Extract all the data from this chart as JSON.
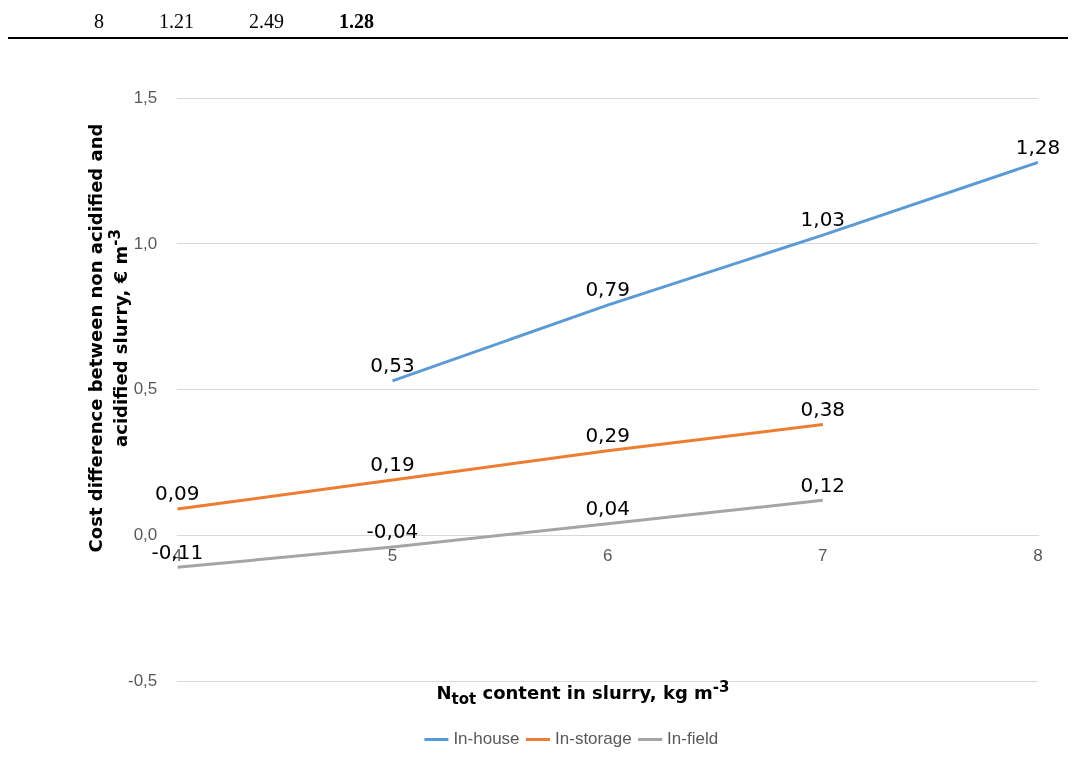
{
  "chart_data": {
    "type": "line",
    "annotations": [
      "8",
      "1.21",
      "2.49",
      "1.28"
    ],
    "xlabel": "N$_{tot}$ content in slurry, kg m$^{-3}$",
    "ylabel": "Cost difference between non acidified and acidified slurry, € m$^{-3}$",
    "xlim": [
      4,
      8
    ],
    "xticks": [
      4,
      5,
      6,
      7,
      8
    ],
    "ylim": [
      -0.5,
      1.5
    ],
    "yticks": [
      {
        "value": -0.5,
        "label": "-0,5"
      },
      {
        "value": 0,
        "label": "0,0"
      },
      {
        "value": 0.5,
        "label": "0,5"
      },
      {
        "value": 1,
        "label": "1,0"
      },
      {
        "value": 1.5,
        "label": "1,5"
      }
    ],
    "series": [
      {
        "name": "In-house",
        "color": "#5b9bd5",
        "x": [
          5,
          6,
          7,
          8
        ],
        "values": [
          0.53,
          0.79,
          1.03,
          1.28
        ],
        "value_labels": [
          "0,53",
          "0,79",
          "1,03",
          "1,28"
        ]
      },
      {
        "name": "In-storage",
        "color": "#ed7d31",
        "x": [
          4,
          5,
          6,
          7
        ],
        "values": [
          0.09,
          0.19,
          0.29,
          0.38
        ],
        "value_labels": [
          "0,09",
          "0,19",
          "0,29",
          "0,38"
        ]
      },
      {
        "name": "In-field",
        "color": "#a5a5a5",
        "x": [
          4,
          5,
          6,
          7
        ],
        "values": [
          -0.11,
          -0.04,
          0.04,
          0.12
        ],
        "value_labels": [
          "-0,11",
          "-0,04",
          "0,04",
          "0,12"
        ]
      }
    ],
    "grid": "y",
    "legend": "bottom",
    "marker": "none",
    "line_style": "solid"
  }
}
